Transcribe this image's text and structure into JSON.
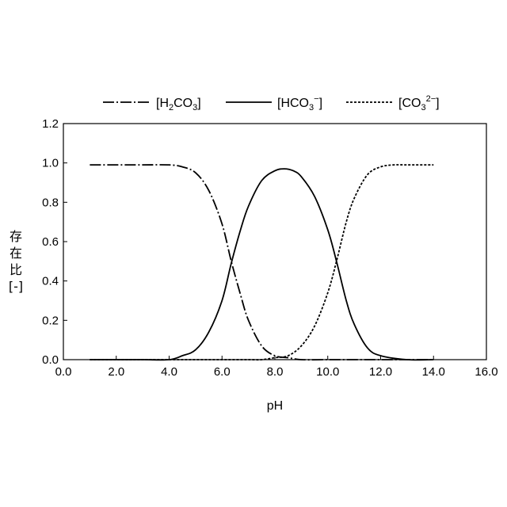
{
  "chart_data": {
    "type": "line",
    "title": "",
    "xlabel": "pH",
    "ylabel_chars": [
      "存",
      "在",
      "比",
      "[-]"
    ],
    "xlim": [
      0.0,
      16.0
    ],
    "ylim": [
      0.0,
      1.2
    ],
    "x_ticks": [
      "0.0",
      "2.0",
      "4.0",
      "6.0",
      "8.0",
      "10.0",
      "12.0",
      "14.0",
      "16.0"
    ],
    "y_ticks": [
      "0.0",
      "0.2",
      "0.4",
      "0.6",
      "0.8",
      "1.0",
      "1.2"
    ],
    "legend_position": "top",
    "legend": [
      {
        "base": "[H",
        "sub": "2",
        "mid": "CO",
        "sub2": "3",
        "sup": "",
        "end": "]",
        "style": "dash-dot"
      },
      {
        "base": "[HCO",
        "sub": "3",
        "mid": "",
        "sub2": "",
        "sup": "−",
        "end": "]",
        "style": "solid"
      },
      {
        "base": "[CO",
        "sub": "3",
        "mid": "",
        "sub2": "",
        "sup": "2−",
        "end": "]",
        "style": "dotted"
      }
    ],
    "series": [
      {
        "name": "[H2CO3]",
        "style": "dash-dot",
        "x": [
          1.0,
          2.0,
          3.0,
          4.0,
          4.5,
          5.0,
          5.5,
          6.0,
          6.35,
          6.7,
          7.0,
          7.5,
          8.0,
          8.5,
          9.0,
          10.0,
          11.0,
          12.0,
          13.0,
          14.0
        ],
        "values": [
          0.99,
          0.99,
          0.99,
          0.99,
          0.98,
          0.95,
          0.86,
          0.69,
          0.5,
          0.33,
          0.2,
          0.07,
          0.02,
          0.01,
          0.0,
          0.0,
          0.0,
          0.0,
          0.0,
          0.0
        ]
      },
      {
        "name": "[HCO3-]",
        "style": "solid",
        "x": [
          1.0,
          2.0,
          3.0,
          4.0,
          4.5,
          5.0,
          5.5,
          6.0,
          6.35,
          6.7,
          7.0,
          7.5,
          8.0,
          8.35,
          8.7,
          9.0,
          9.5,
          10.0,
          10.33,
          10.7,
          11.0,
          11.5,
          12.0,
          13.0,
          14.0
        ],
        "values": [
          0.0,
          0.0,
          0.0,
          0.0,
          0.02,
          0.05,
          0.14,
          0.3,
          0.49,
          0.66,
          0.78,
          0.91,
          0.96,
          0.97,
          0.96,
          0.93,
          0.83,
          0.66,
          0.5,
          0.3,
          0.18,
          0.06,
          0.02,
          0.0,
          0.0
        ]
      },
      {
        "name": "[CO3 2-]",
        "style": "dotted",
        "x": [
          1.0,
          2.0,
          3.0,
          4.0,
          5.0,
          6.0,
          7.0,
          7.5,
          8.0,
          8.5,
          9.0,
          9.5,
          10.0,
          10.33,
          10.7,
          11.0,
          11.5,
          12.0,
          12.5,
          13.0,
          14.0
        ],
        "values": [
          0.0,
          0.0,
          0.0,
          0.0,
          0.0,
          0.0,
          0.0,
          0.0,
          0.01,
          0.02,
          0.07,
          0.17,
          0.34,
          0.5,
          0.7,
          0.82,
          0.94,
          0.98,
          0.99,
          0.99,
          0.99
        ]
      }
    ]
  }
}
